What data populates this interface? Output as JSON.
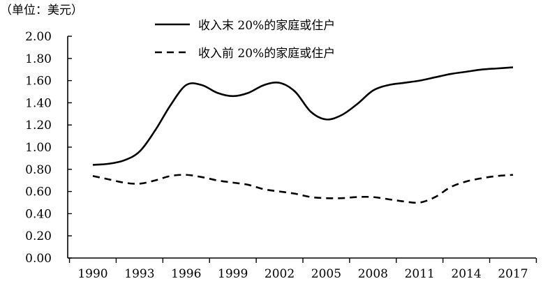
{
  "chart_data": {
    "type": "line",
    "unit_label": "（单位：美元）",
    "x": [
      1990,
      1991,
      1992,
      1993,
      1994,
      1995,
      1996,
      1997,
      1998,
      1999,
      2000,
      2001,
      2002,
      2003,
      2004,
      2005,
      2006,
      2007,
      2008,
      2009,
      2010,
      2011,
      2012,
      2013,
      2014,
      2015,
      2016,
      2017
    ],
    "x_ticks": [
      "1990",
      "1993",
      "1996",
      "1999",
      "2002",
      "2005",
      "2008",
      "2011",
      "2014",
      "2017"
    ],
    "y_ticks": [
      "0.00",
      "0.20",
      "0.40",
      "0.60",
      "0.80",
      "1.00",
      "1.20",
      "1.40",
      "1.60",
      "1.80",
      "2.00"
    ],
    "ylim": [
      0,
      2.0
    ],
    "legend_position": "top",
    "series": [
      {
        "name": "收入末 20%的家庭或住户",
        "style": "solid",
        "values": [
          0.84,
          0.85,
          0.88,
          0.96,
          1.15,
          1.38,
          1.56,
          1.56,
          1.49,
          1.46,
          1.49,
          1.56,
          1.58,
          1.5,
          1.32,
          1.25,
          1.29,
          1.39,
          1.51,
          1.56,
          1.58,
          1.6,
          1.63,
          1.66,
          1.68,
          1.7,
          1.71,
          1.72
        ]
      },
      {
        "name": "收入前 20%的家庭或住户",
        "style": "dashed",
        "values": [
          0.74,
          0.71,
          0.68,
          0.67,
          0.7,
          0.74,
          0.75,
          0.73,
          0.7,
          0.68,
          0.66,
          0.62,
          0.6,
          0.58,
          0.55,
          0.54,
          0.54,
          0.55,
          0.55,
          0.53,
          0.51,
          0.5,
          0.55,
          0.64,
          0.69,
          0.72,
          0.74,
          0.75
        ]
      }
    ]
  }
}
